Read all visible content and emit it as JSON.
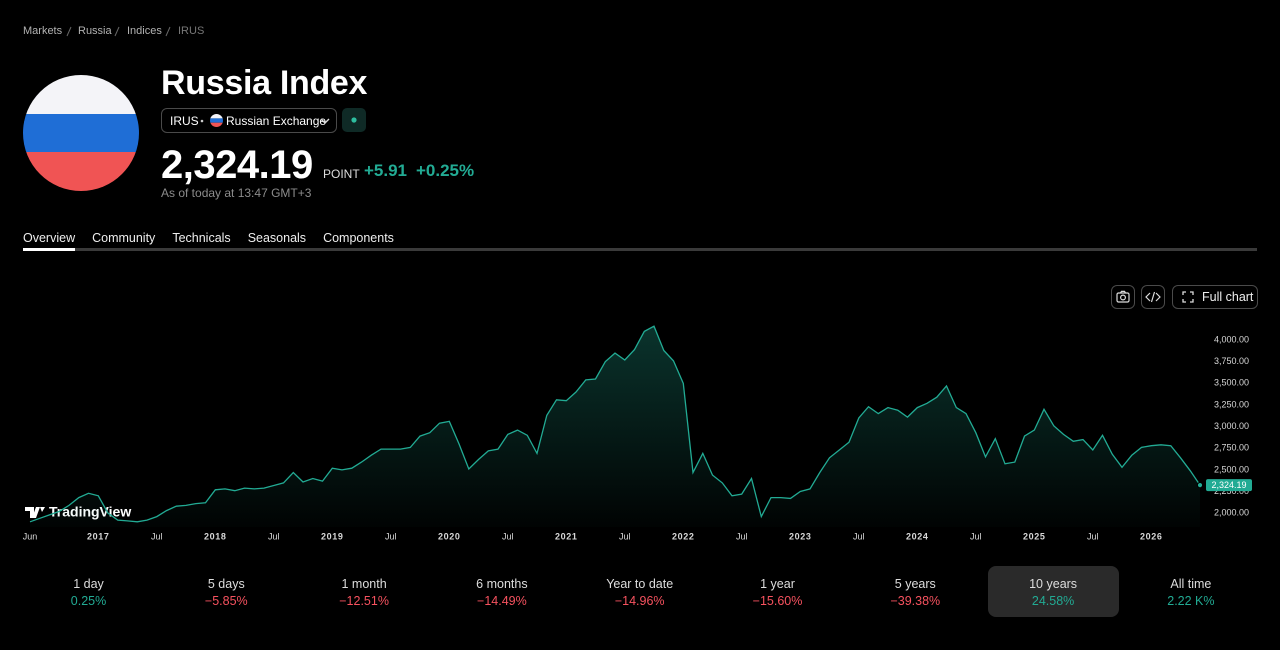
{
  "breadcrumb": [
    "Markets",
    "Russia",
    "Indices",
    "IRUS"
  ],
  "header": {
    "title": "Russia Index",
    "ticker": "IRUS",
    "exchange": "Russian Exchange",
    "price": "2,324.19",
    "unit": "POINT",
    "change": "+5.91",
    "change_pct": "+0.25%",
    "as_of": "As of today at 13:47 GMT+3"
  },
  "tabs": [
    {
      "label": "Overview",
      "active": true
    },
    {
      "label": "Community"
    },
    {
      "label": "Technicals"
    },
    {
      "label": "Seasonals"
    },
    {
      "label": "Components"
    }
  ],
  "toolbar": {
    "full_chart": "Full chart"
  },
  "watermark": "TradingView",
  "chart_data": {
    "type": "area",
    "color": "#22ab94",
    "grid": false,
    "values": [
      1900,
      1940,
      1980,
      2020,
      2090,
      2180,
      2230,
      2200,
      2000,
      1920,
      1910,
      1900,
      1920,
      1960,
      2030,
      2080,
      2090,
      2110,
      2120,
      2270,
      2280,
      2260,
      2290,
      2280,
      2290,
      2320,
      2350,
      2470,
      2360,
      2400,
      2370,
      2520,
      2500,
      2520,
      2590,
      2670,
      2740,
      2740,
      2740,
      2760,
      2890,
      2930,
      3040,
      3060,
      2800,
      2510,
      2620,
      2720,
      2740,
      2910,
      2960,
      2900,
      2690,
      3130,
      3310,
      3300,
      3400,
      3540,
      3550,
      3750,
      3850,
      3770,
      3890,
      4100,
      4160,
      3880,
      3760,
      3500,
      2470,
      2690,
      2440,
      2350,
      2200,
      2220,
      2400,
      1960,
      2180,
      2180,
      2170,
      2250,
      2280,
      2470,
      2640,
      2730,
      2820,
      3100,
      3230,
      3150,
      3220,
      3190,
      3110,
      3220,
      3270,
      3340,
      3470,
      3220,
      3150,
      2930,
      2650,
      2860,
      2570,
      2590,
      2890,
      2960,
      3200,
      3010,
      2910,
      2830,
      2850,
      2730,
      2900,
      2680,
      2530,
      2670,
      2760,
      2780,
      2790,
      2780,
      2640,
      2490,
      2324.19
    ],
    "value_labels": [
      null,
      null,
      null,
      null,
      null,
      null,
      null,
      null,
      null,
      null,
      null,
      null,
      null,
      null,
      null,
      null,
      null,
      null,
      null,
      null,
      null,
      null,
      null,
      null,
      null,
      null,
      null,
      null,
      null,
      null,
      null,
      null,
      null,
      null,
      null,
      null,
      null,
      null,
      null,
      null,
      null,
      null,
      null,
      null,
      null,
      null,
      null,
      null,
      null,
      null,
      null,
      null,
      null,
      null,
      null,
      null,
      null,
      null,
      null,
      null,
      null,
      null,
      null,
      null,
      null,
      null,
      null,
      null,
      null,
      null,
      null,
      null,
      null,
      null,
      null,
      null,
      null,
      null,
      null,
      null,
      null,
      null,
      null,
      null,
      null,
      null,
      null,
      null,
      null,
      null,
      null,
      null,
      null,
      null,
      null,
      null,
      null,
      null,
      null,
      null,
      null,
      null,
      null,
      null,
      null,
      null,
      null,
      null,
      null,
      null,
      null,
      null,
      null,
      null,
      null,
      null,
      null,
      null,
      null,
      null,
      "2,324.19"
    ],
    "xlim": [
      0,
      120
    ],
    "xticks": [
      {
        "value": 0,
        "label": "Jun"
      },
      {
        "value": 7,
        "label": "2017"
      },
      {
        "value": 13,
        "label": "Jul"
      },
      {
        "value": 19,
        "label": "2018"
      },
      {
        "value": 25,
        "label": "Jul"
      },
      {
        "value": 31,
        "label": "2019"
      },
      {
        "value": 37,
        "label": "Jul"
      },
      {
        "value": 43,
        "label": "2020"
      },
      {
        "value": 49,
        "label": "Jul"
      },
      {
        "value": 55,
        "label": "2021"
      },
      {
        "value": 61,
        "label": "Jul"
      },
      {
        "value": 67,
        "label": "2022"
      },
      {
        "value": 73,
        "label": "Jul"
      },
      {
        "value": 79,
        "label": "2023"
      },
      {
        "value": 85,
        "label": "Jul"
      },
      {
        "value": 91,
        "label": "2024"
      },
      {
        "value": 97,
        "label": "Jul"
      },
      {
        "value": 103,
        "label": "2025"
      },
      {
        "value": 109,
        "label": "Jul"
      },
      {
        "value": 115,
        "label": "2026"
      }
    ],
    "ylim": [
      1840,
      4290
    ],
    "yticks": [
      {
        "value": 2000,
        "label": "2,000.00"
      },
      {
        "value": 2250,
        "label": "2,250.00"
      },
      {
        "value": 2500,
        "label": "2,500.00"
      },
      {
        "value": 2750,
        "label": "2,750.00"
      },
      {
        "value": 3000,
        "label": "3,000.00"
      },
      {
        "value": 3250,
        "label": "3,250.00"
      },
      {
        "value": 3500,
        "label": "3,500.00"
      },
      {
        "value": 3750,
        "label": "3,750.00"
      },
      {
        "value": 4000,
        "label": "4,000.00"
      }
    ]
  },
  "performance": [
    {
      "period": "1 day",
      "change": "0.25%"
    },
    {
      "period": "5 days",
      "change": "−5.85%"
    },
    {
      "period": "1 month",
      "change": "−12.51%"
    },
    {
      "period": "6 months",
      "change": "−14.49%"
    },
    {
      "period": "Year to date",
      "change": "−14.96%"
    },
    {
      "period": "1 year",
      "change": "−15.60%"
    },
    {
      "period": "5 years",
      "change": "−39.38%"
    },
    {
      "period": "10 years",
      "change": "24.58%",
      "active": true
    },
    {
      "period": "All time",
      "change": "2.22 K%"
    }
  ]
}
